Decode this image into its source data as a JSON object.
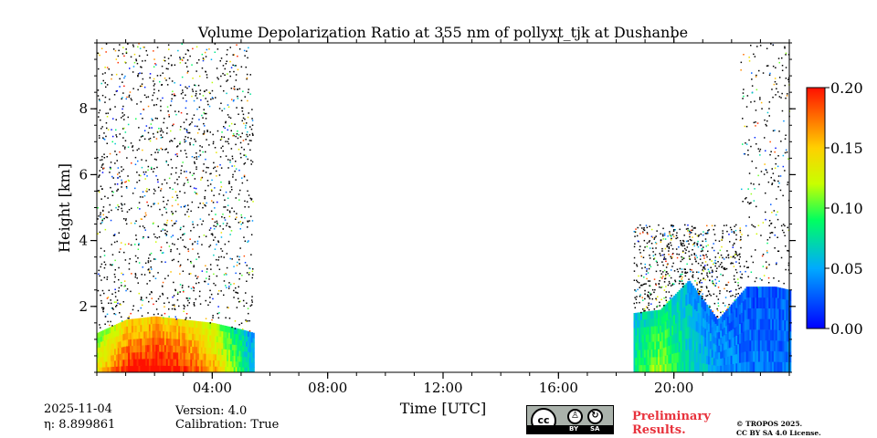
{
  "chart_data": {
    "type": "heatmap",
    "title": "Volume Depolarization Ratio at 355 nm of pollyxt_tjk at Dushanbe",
    "xlabel": "Time [UTC]",
    "ylabel": "Height [km]",
    "xlim_hours": [
      0,
      24
    ],
    "ylim_km": [
      0,
      10
    ],
    "xticks": [
      {
        "value": 4,
        "label": "04:00"
      },
      {
        "value": 8,
        "label": "08:00"
      },
      {
        "value": 12,
        "label": "12:00"
      },
      {
        "value": 16,
        "label": "16:00"
      },
      {
        "value": 20,
        "label": "20:00"
      }
    ],
    "yticks": [
      {
        "value": 2,
        "label": "2"
      },
      {
        "value": 4,
        "label": "4"
      },
      {
        "value": 6,
        "label": "6"
      },
      {
        "value": 8,
        "label": "8"
      }
    ],
    "colorbar": {
      "min": 0.0,
      "max": 0.2,
      "ticks": [
        "0.00",
        "0.05",
        "0.10",
        "0.15",
        "0.20"
      ],
      "colormap": "jet"
    },
    "data_segments": [
      {
        "start_h": 0.0,
        "end_h": 5.4,
        "note": "measurements; aerosol layer below ~1.5 km, noisy signal above"
      },
      {
        "start_h": 18.6,
        "end_h": 24.0,
        "note": "measurements; aerosol layer up to ~2.8 km"
      }
    ],
    "layer_profile": [
      {
        "t": 0.0,
        "top": 1.2,
        "v": 0.12
      },
      {
        "t": 1.0,
        "top": 1.6,
        "v": 0.17
      },
      {
        "t": 2.0,
        "top": 1.7,
        "v": 0.18
      },
      {
        "t": 3.0,
        "top": 1.6,
        "v": 0.17
      },
      {
        "t": 4.0,
        "top": 1.5,
        "v": 0.14
      },
      {
        "t": 5.0,
        "top": 1.3,
        "v": 0.08
      },
      {
        "t": 5.4,
        "top": 1.2,
        "v": 0.05
      },
      {
        "t": 18.6,
        "top": 1.8,
        "v": 0.07
      },
      {
        "t": 19.5,
        "top": 1.9,
        "v": 0.1
      },
      {
        "t": 20.5,
        "top": 2.8,
        "v": 0.06
      },
      {
        "t": 21.5,
        "top": 1.6,
        "v": 0.04
      },
      {
        "t": 22.5,
        "top": 2.6,
        "v": 0.03
      },
      {
        "t": 23.5,
        "top": 2.6,
        "v": 0.03
      },
      {
        "t": 24.0,
        "top": 2.5,
        "v": 0.03
      }
    ]
  },
  "footer": {
    "date": "2025-11-04",
    "eta": "η: 8.899861",
    "version": "Version: 4.0",
    "calibration": "Calibration: True",
    "preliminary": "Preliminary\nResults.",
    "copyright_line1": "© TROPOS 2025.",
    "copyright_line2": "CC BY SA 4.0 License.",
    "license_badge": {
      "cc": "cc",
      "by": "BY",
      "sa": "SA"
    }
  },
  "colors": {
    "preliminary": "#e8323c",
    "badge_bg": "#aab2ab"
  }
}
